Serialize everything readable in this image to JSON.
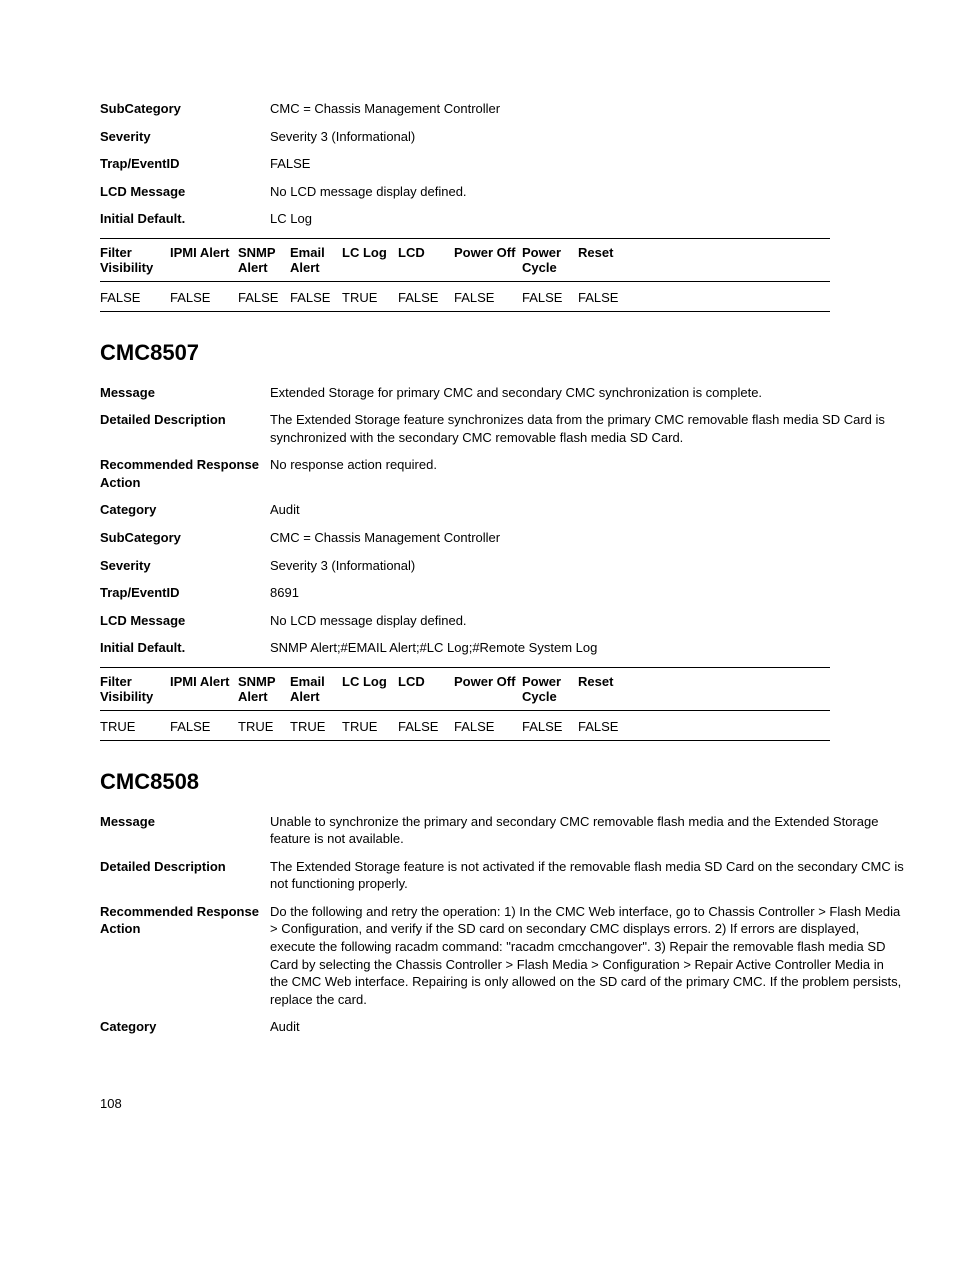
{
  "block0": {
    "fields": {
      "subcategory": {
        "label": "SubCategory",
        "value": "CMC = Chassis Management Controller"
      },
      "severity": {
        "label": "Severity",
        "value": "Severity 3 (Informational)"
      },
      "trapEventId": {
        "label": "Trap/EventID",
        "value": "FALSE"
      },
      "lcdMessage": {
        "label": "LCD Message",
        "value": "No LCD message display defined."
      },
      "initialDefault": {
        "label": "Initial Default.",
        "value": "LC Log"
      }
    },
    "flagTable": {
      "headers": [
        "Filter Visibility",
        "IPMI Alert",
        "SNMP Alert",
        "Email Alert",
        "LC Log",
        "LCD",
        "Power Off",
        "Power Cycle",
        "Reset"
      ],
      "row": [
        "FALSE",
        "FALSE",
        "FALSE",
        "FALSE",
        "TRUE",
        "FALSE",
        "FALSE",
        "FALSE",
        "FALSE"
      ]
    }
  },
  "block1": {
    "heading": "CMC8507",
    "fields": {
      "message": {
        "label": "Message",
        "value": "Extended Storage for primary CMC and secondary CMC synchronization is complete."
      },
      "detailedDesc": {
        "label": "Detailed Description",
        "value": "The Extended Storage feature synchronizes data from the primary CMC removable flash media SD Card is synchronized with the secondary CMC removable flash media SD Card."
      },
      "recommended": {
        "label": "Recommended Response Action",
        "value": "No response action required."
      },
      "category": {
        "label": "Category",
        "value": "Audit"
      },
      "subcategory": {
        "label": "SubCategory",
        "value": "CMC = Chassis Management Controller"
      },
      "severity": {
        "label": "Severity",
        "value": "Severity 3 (Informational)"
      },
      "trapEventId": {
        "label": "Trap/EventID",
        "value": "8691"
      },
      "lcdMessage": {
        "label": "LCD Message",
        "value": "No LCD message display defined."
      },
      "initialDefault": {
        "label": "Initial Default.",
        "value": "SNMP Alert;#EMAIL Alert;#LC Log;#Remote System Log"
      }
    },
    "flagTable": {
      "headers": [
        "Filter Visibility",
        "IPMI Alert",
        "SNMP Alert",
        "Email Alert",
        "LC Log",
        "LCD",
        "Power Off",
        "Power Cycle",
        "Reset"
      ],
      "row": [
        "TRUE",
        "FALSE",
        "TRUE",
        "TRUE",
        "TRUE",
        "FALSE",
        "FALSE",
        "FALSE",
        "FALSE"
      ]
    }
  },
  "block2": {
    "heading": "CMC8508",
    "fields": {
      "message": {
        "label": "Message",
        "value": "Unable to synchronize the primary and secondary CMC removable flash media and the Extended Storage feature is not available."
      },
      "detailedDesc": {
        "label": "Detailed Description",
        "value": "The Extended Storage feature is not activated if the removable flash media SD Card on the secondary CMC is not functioning properly."
      },
      "recommended": {
        "label": "Recommended Response Action",
        "value": "Do the following and retry the operation: 1) In the CMC Web interface, go to Chassis Controller > Flash Media > Configuration, and verify if the SD card on secondary CMC displays errors. 2) If errors are displayed, execute the following racadm command: \"racadm cmcchangover\". 3) Repair the removable flash media SD Card by selecting the Chassis Controller > Flash Media > Configuration > Repair Active Controller Media in the CMC Web interface. Repairing is only allowed on the SD card of the primary CMC. If the problem persists, replace the card."
      },
      "category": {
        "label": "Category",
        "value": "Audit"
      }
    }
  },
  "pageNumber": "108",
  "colWidths": [
    "70px",
    "68px",
    "52px",
    "52px",
    "56px",
    "56px",
    "68px",
    "56px",
    "auto"
  ]
}
